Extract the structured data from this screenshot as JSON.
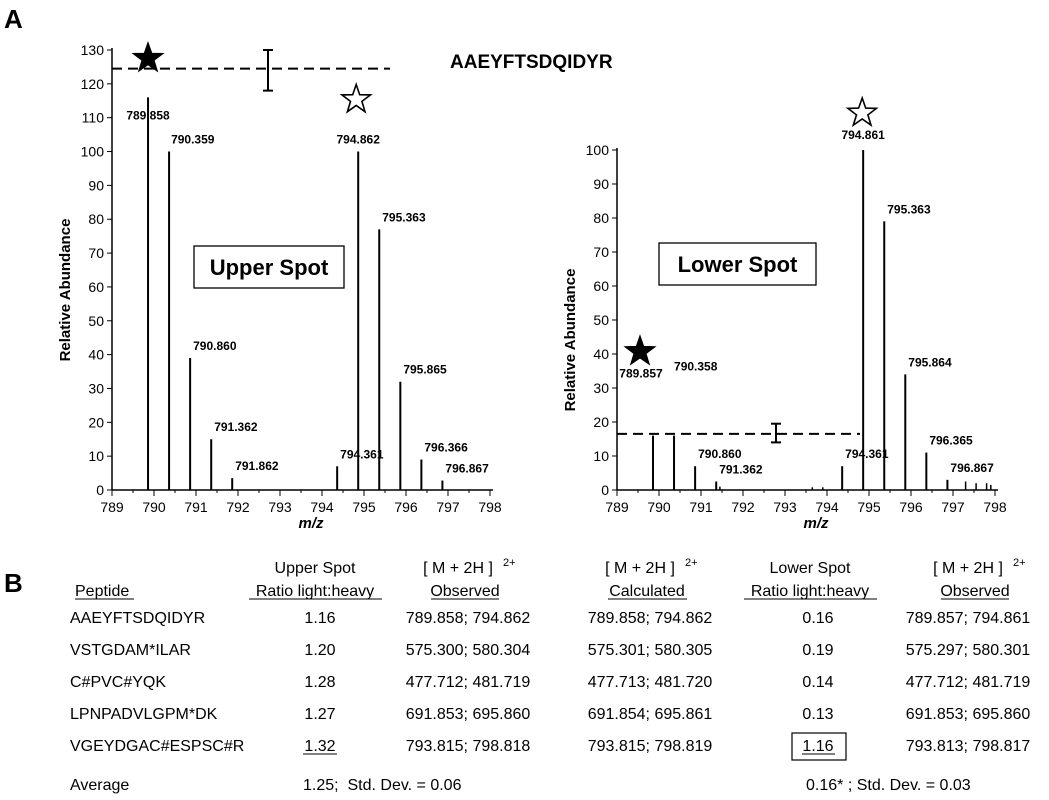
{
  "panel_labels": {
    "a": "A",
    "b": "B"
  },
  "peptide_title": "AAEYFTSDQIDYR",
  "chart_data": [
    {
      "type": "bar",
      "panel": "A-left",
      "spot_label": "Upper Spot",
      "ylabel": "Relative Abundance",
      "xlabel": "m/z",
      "xlim": [
        789,
        798
      ],
      "ylim": [
        0,
        130
      ],
      "xticks": [
        "789",
        "790",
        "791",
        "792",
        "793",
        "794",
        "795",
        "796",
        "797",
        "798"
      ],
      "yticks": [
        "0",
        "10",
        "20",
        "30",
        "40",
        "50",
        "60",
        "70",
        "80",
        "90",
        "100",
        "110",
        "120",
        "130"
      ],
      "peaks": [
        {
          "mz": 789.858,
          "rel": 116,
          "label": "789.858",
          "marker": "filled-star"
        },
        {
          "mz": 790.359,
          "rel": 100,
          "label": "790.359"
        },
        {
          "mz": 790.86,
          "rel": 39,
          "label": "790.860"
        },
        {
          "mz": 791.362,
          "rel": 15,
          "label": "791.362"
        },
        {
          "mz": 791.862,
          "rel": 3.5,
          "label": "791.862"
        },
        {
          "mz": 794.361,
          "rel": 7,
          "label": "794.361"
        },
        {
          "mz": 794.862,
          "rel": 100,
          "label": "794.862",
          "marker": "open-star"
        },
        {
          "mz": 795.363,
          "rel": 77,
          "label": "795.363"
        },
        {
          "mz": 795.865,
          "rel": 32,
          "label": "795.865"
        },
        {
          "mz": 796.366,
          "rel": 9,
          "label": "796.366"
        },
        {
          "mz": 796.867,
          "rel": 2.8,
          "label": "796.867"
        }
      ],
      "reference_line": {
        "level": 124.5,
        "error_low": 118,
        "error_high": 130
      }
    },
    {
      "type": "bar",
      "panel": "A-right",
      "spot_label": "Lower Spot",
      "ylabel": "Relative Abundance",
      "xlabel": "m/z",
      "xlim": [
        789,
        798
      ],
      "ylim": [
        0,
        100
      ],
      "xticks": [
        "789",
        "790",
        "791",
        "792",
        "793",
        "794",
        "795",
        "796",
        "797",
        "798"
      ],
      "yticks": [
        "0",
        "10",
        "20",
        "30",
        "40",
        "50",
        "60",
        "70",
        "80",
        "90",
        "100"
      ],
      "peaks": [
        {
          "mz": 789.857,
          "rel": 16,
          "label": "789.857",
          "marker": "filled-star"
        },
        {
          "mz": 790.358,
          "rel": 16,
          "label": "790.358"
        },
        {
          "mz": 790.86,
          "rel": 7,
          "label": "790.860"
        },
        {
          "mz": 791.362,
          "rel": 2.5,
          "label": "791.362"
        },
        {
          "mz": 794.361,
          "rel": 7,
          "label": "794.361"
        },
        {
          "mz": 794.861,
          "rel": 100,
          "label": "794.861",
          "marker": "open-star"
        },
        {
          "mz": 795.363,
          "rel": 79,
          "label": "795.363"
        },
        {
          "mz": 795.864,
          "rel": 34,
          "label": "795.864"
        },
        {
          "mz": 796.365,
          "rel": 11,
          "label": "796.365"
        },
        {
          "mz": 796.867,
          "rel": 3,
          "label": "796.867"
        }
      ],
      "minor_peaks": [
        {
          "mz": 791.45,
          "rel": 1.0
        },
        {
          "mz": 793.65,
          "rel": 0.8
        },
        {
          "mz": 793.9,
          "rel": 0.8
        },
        {
          "mz": 797.3,
          "rel": 2.5
        },
        {
          "mz": 797.55,
          "rel": 2
        },
        {
          "mz": 797.8,
          "rel": 2
        },
        {
          "mz": 797.9,
          "rel": 1.5
        }
      ],
      "reference_line": {
        "level": 16.5,
        "error_low": 14,
        "error_high": 19.5
      }
    },
    {
      "type": "table",
      "panel": "B",
      "header": {
        "peptide": "Peptide",
        "upper_line1": "Upper Spot",
        "upper_line2": "Ratio light:heavy",
        "obs_line1": "[ M + 2H ]",
        "obs_sup": "2+",
        "obs_line2": "Observed",
        "calc_line1": "[ M + 2H ]",
        "calc_sup": "2+",
        "calc_line2": "Calculated",
        "lower_line1": "Lower Spot",
        "lower_line2": "Ratio light:heavy",
        "obs2_line1": "[ M + 2H ]",
        "obs2_sup": "2+",
        "obs2_line2": "Observed"
      },
      "rows": [
        {
          "peptide": "AAEYFTSDQIDYR",
          "upper": "1.16",
          "obs_upper": "789.858; 794.862",
          "calc": "789.858; 794.862",
          "lower": "0.16",
          "obs_lower": "789.857; 794.861"
        },
        {
          "peptide": "VSTGDAM*ILAR",
          "upper": "1.20",
          "obs_upper": "575.300; 580.304",
          "calc": "575.301; 580.305",
          "lower": "0.19",
          "obs_lower": "575.297; 580.301"
        },
        {
          "peptide": "C#PVC#YQK",
          "upper": "1.28",
          "obs_upper": "477.712; 481.719",
          "calc": "477.713; 481.720",
          "lower": "0.14",
          "obs_lower": "477.712; 481.719"
        },
        {
          "peptide": "LPNPADVLGPM*DK",
          "upper": "1.27",
          "obs_upper": "691.853; 695.860",
          "calc": "691.854; 695.861",
          "lower": "0.13",
          "obs_lower": "691.853; 695.860"
        },
        {
          "peptide": "VGEYDGAC#ESPSC#R",
          "upper": "1.32",
          "obs_upper": "793.815; 798.818",
          "calc": "793.815; 798.819",
          "lower": "1.16",
          "obs_lower": "793.813; 798.817"
        }
      ],
      "average": {
        "label": "Average",
        "upper": "1.25;  Std. Dev. = 0.06",
        "lower": "0.16* ; Std. Dev. = 0.03"
      }
    }
  ]
}
